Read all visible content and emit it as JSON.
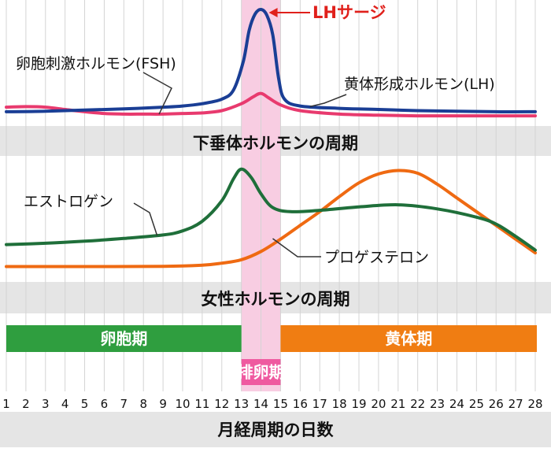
{
  "chart_data": {
    "type": "line",
    "days": [
      "1",
      "2",
      "3",
      "4",
      "5",
      "6",
      "7",
      "8",
      "9",
      "10",
      "11",
      "12",
      "13",
      "14",
      "15",
      "16",
      "17",
      "18",
      "19",
      "20",
      "21",
      "22",
      "23",
      "24",
      "25",
      "26",
      "27",
      "28"
    ],
    "x_axis_label": "月経周期の日数",
    "ovulation_window": [
      13,
      15
    ],
    "colors": {
      "lh": "#1a3e95",
      "fsh": "#e83a6e",
      "estrogen": "#1f6f3a",
      "progesterone": "#ef6a12",
      "follicular": "#2f9e3f",
      "luteal": "#f07d12",
      "ovulation": "#ef5aa0",
      "band_gray": "#e5e5e5",
      "pink_highlight": "#f8cde2",
      "lh_surge_label": "#e0201b"
    },
    "panels": {
      "pituitary": {
        "title": "下垂体ホルモンの周期",
        "lh_surge_annotation": "LHサージ",
        "series": [
          {
            "key": "lh",
            "label": "黄体形成ホルモン(LH)",
            "points": [
              [
                1,
                11
              ],
              [
                3,
                11.5
              ],
              [
                5,
                12.5
              ],
              [
                7,
                13.5
              ],
              [
                9,
                15
              ],
              [
                10,
                16
              ],
              [
                11,
                18
              ],
              [
                12,
                22
              ],
              [
                12.6,
                30
              ],
              [
                13.1,
                55
              ],
              [
                13.4,
                82
              ],
              [
                13.7,
                96
              ],
              [
                14,
                100
              ],
              [
                14.3,
                95
              ],
              [
                14.6,
                78
              ],
              [
                14.9,
                40
              ],
              [
                15.2,
                22
              ],
              [
                16,
                16
              ],
              [
                18,
                14
              ],
              [
                20,
                13
              ],
              [
                22,
                12
              ],
              [
                24,
                11.5
              ],
              [
                26,
                11
              ],
              [
                28,
                11
              ]
            ]
          },
          {
            "key": "fsh",
            "label": "卵胞刺激ホルモン(FSH)",
            "points": [
              [
                1,
                15
              ],
              [
                2,
                15.5
              ],
              [
                3,
                15
              ],
              [
                4,
                13
              ],
              [
                5,
                11
              ],
              [
                6,
                9.5
              ],
              [
                7,
                9
              ],
              [
                8,
                9
              ],
              [
                9,
                9
              ],
              [
                10,
                9.5
              ],
              [
                11,
                10
              ],
              [
                12,
                12
              ],
              [
                13,
                18
              ],
              [
                13.6,
                24
              ],
              [
                14,
                27
              ],
              [
                14.4,
                23
              ],
              [
                15,
                17
              ],
              [
                16,
                12
              ],
              [
                18,
                9
              ],
              [
                20,
                8
              ],
              [
                22,
                7.5
              ],
              [
                24,
                7.5
              ],
              [
                26,
                7.5
              ],
              [
                28,
                7.5
              ]
            ]
          }
        ]
      },
      "ovarian": {
        "title": "女性ホルモンの周期",
        "series": [
          {
            "key": "estrogen",
            "label": "エストロゲン",
            "points": [
              [
                1,
                18
              ],
              [
                3,
                19
              ],
              [
                5,
                20.5
              ],
              [
                7,
                22.5
              ],
              [
                9,
                25
              ],
              [
                10,
                28
              ],
              [
                11,
                35
              ],
              [
                12,
                50
              ],
              [
                12.6,
                66
              ],
              [
                13,
                73
              ],
              [
                13.5,
                67
              ],
              [
                14,
                55
              ],
              [
                14.6,
                45
              ],
              [
                15.5,
                42
              ],
              [
                17,
                43
              ],
              [
                19,
                45.5
              ],
              [
                21,
                47
              ],
              [
                23,
                44
              ],
              [
                25,
                38
              ],
              [
                26,
                33
              ],
              [
                27,
                24
              ],
              [
                28,
                14
              ]
            ]
          },
          {
            "key": "progesterone",
            "label": "プロゲステロン",
            "points": [
              [
                1,
                2
              ],
              [
                5,
                2
              ],
              [
                9,
                2.2
              ],
              [
                11,
                3
              ],
              [
                12,
                4.5
              ],
              [
                13,
                7
              ],
              [
                14,
                13
              ],
              [
                15,
                22
              ],
              [
                16,
                32
              ],
              [
                17,
                42
              ],
              [
                18,
                53
              ],
              [
                19,
                63
              ],
              [
                20,
                69.5
              ],
              [
                21,
                72
              ],
              [
                22,
                70
              ],
              [
                23,
                62
              ],
              [
                24,
                52
              ],
              [
                25,
                42
              ],
              [
                26,
                32
              ],
              [
                27,
                22
              ],
              [
                28,
                12
              ]
            ]
          }
        ]
      },
      "phases": [
        {
          "key": "follicular",
          "label": "卵胞期",
          "range": [
            1,
            13
          ]
        },
        {
          "key": "ovulation",
          "label": "排卵期",
          "range": [
            13,
            15
          ]
        },
        {
          "key": "luteal",
          "label": "黄体期",
          "range": [
            15,
            28
          ]
        }
      ]
    }
  }
}
